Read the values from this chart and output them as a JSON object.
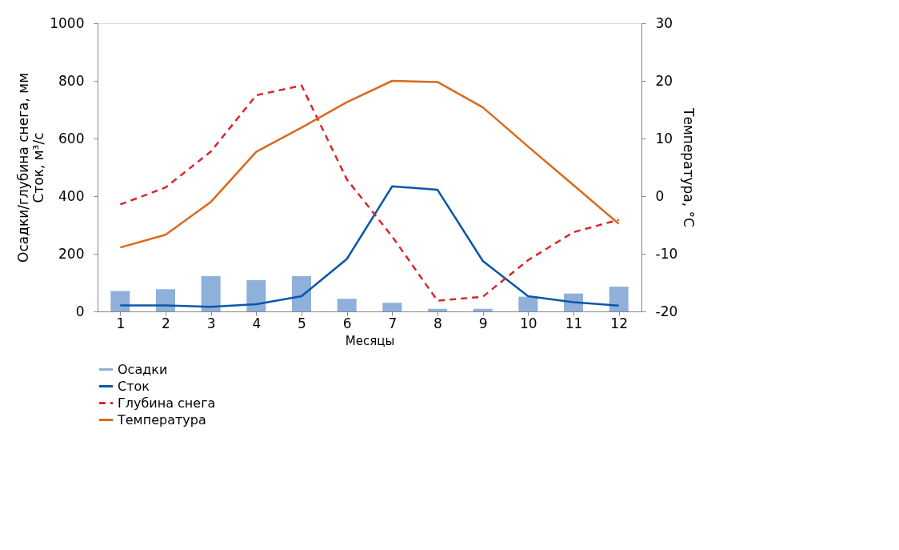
{
  "chart_data": {
    "type": "line",
    "xlabel": "Месяцы",
    "ylabel": "Осадки/глубина снега, мм\nСток, м³/с",
    "y2label": "Температура, °C",
    "x": [
      1,
      2,
      3,
      4,
      5,
      6,
      7,
      8,
      9,
      10,
      11,
      12
    ],
    "xlim": [
      0.5,
      12.5
    ],
    "xticks": [
      1,
      2,
      3,
      4,
      5,
      6,
      7,
      8,
      9,
      10,
      11,
      12
    ],
    "ylim": [
      0,
      1000
    ],
    "yticks": [
      0,
      200,
      400,
      600,
      800,
      1000
    ],
    "y2lim": [
      -20,
      30
    ],
    "y2ticks": [
      -20,
      -10,
      0,
      10,
      20,
      30
    ],
    "grid": false,
    "legend": "bottom",
    "marker": "none",
    "series": [
      {
        "name": "Осадки",
        "type": "bar",
        "color": "#8eb0da",
        "values": [
          71,
          77,
          122,
          108,
          122,
          44,
          30,
          9,
          9,
          51,
          62,
          86
        ]
      },
      {
        "name": "Сток",
        "color": "#0b57a8",
        "line_style": "solid",
        "values": [
          21,
          21,
          16,
          25,
          53,
          182,
          434,
          422,
          175,
          53,
          32,
          20
        ]
      },
      {
        "name": "Глубина снега",
        "color": "#d9262b",
        "line_style": "dashed",
        "values": [
          371,
          430,
          555,
          750,
          784,
          458,
          260,
          37,
          51,
          178,
          275,
          318
        ]
      },
      {
        "name": "Температура",
        "color": "#d86a1c",
        "line_style": "solid",
        "axis": "y2",
        "values": [
          -8.9,
          -6.7,
          -1.0,
          7.7,
          11.9,
          16.3,
          20.0,
          19.8,
          15.4,
          8.6,
          1.9,
          -4.8
        ]
      }
    ]
  }
}
